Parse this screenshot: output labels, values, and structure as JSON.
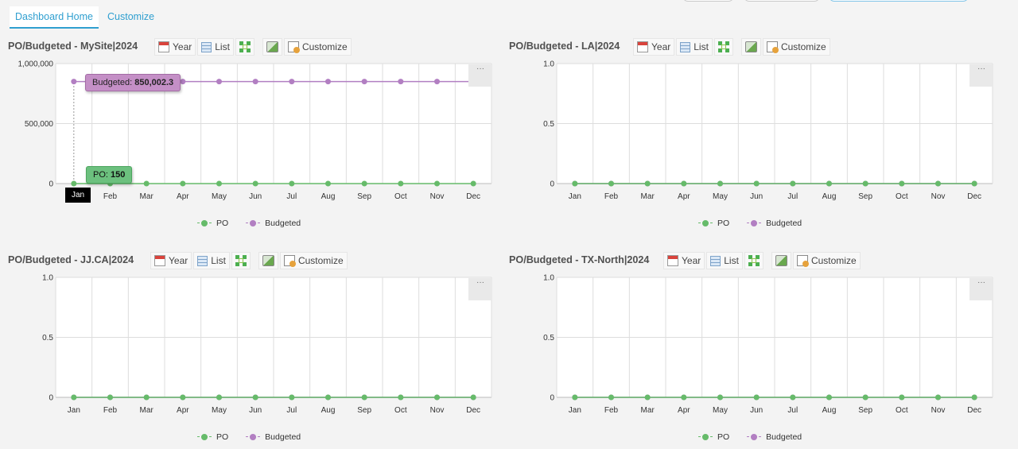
{
  "tabs": [
    {
      "label": "Dashboard Home",
      "active": true
    },
    {
      "label": "Customize",
      "active": false
    }
  ],
  "toolbar_labels": {
    "year": "Year",
    "list": "List",
    "customize": "Customize"
  },
  "legend": {
    "po": "PO",
    "budgeted": "Budgeted"
  },
  "colors": {
    "po": "#66bb6a",
    "budgeted": "#b27fc2",
    "accent": "#2f9fd0"
  },
  "menu_label": "···",
  "panels": [
    {
      "title": "PO/Budgeted - MySite|2024"
    },
    {
      "title": "PO/Budgeted - LA|2024"
    },
    {
      "title": "PO/Budgeted - JJ.CA|2024"
    },
    {
      "title": "PO/Budgeted - TX-North|2024"
    }
  ],
  "tooltip": {
    "budgeted_label": "Budgeted: ",
    "budgeted_value": "850,002.3",
    "po_label": "PO: ",
    "po_value": "150",
    "x_highlight": "Jan"
  },
  "chart_data": [
    {
      "type": "line",
      "title": "PO/Budgeted - MySite|2024",
      "categories": [
        "Jan",
        "Feb",
        "Mar",
        "Apr",
        "May",
        "Jun",
        "Jul",
        "Aug",
        "Sep",
        "Oct",
        "Nov",
        "Dec"
      ],
      "yticks": [
        "0",
        "500,000",
        "1,000,000"
      ],
      "ylim": [
        0,
        1000000
      ],
      "series": [
        {
          "name": "PO",
          "values": [
            150,
            0,
            0,
            0,
            0,
            0,
            0,
            0,
            0,
            0,
            0,
            0
          ]
        },
        {
          "name": "Budgeted",
          "values": [
            850002.3,
            850002.3,
            850002.3,
            850002.3,
            850002.3,
            850002.3,
            850002.3,
            850002.3,
            850002.3,
            850002.3,
            850002.3,
            850002.3
          ]
        }
      ]
    },
    {
      "type": "line",
      "title": "PO/Budgeted - LA|2024",
      "categories": [
        "Jan",
        "Feb",
        "Mar",
        "Apr",
        "May",
        "Jun",
        "Jul",
        "Aug",
        "Sep",
        "Oct",
        "Nov",
        "Dec"
      ],
      "yticks": [
        "0",
        "0.5",
        "1.0"
      ],
      "ylim": [
        0,
        1
      ],
      "series": [
        {
          "name": "PO",
          "values": [
            0,
            0,
            0,
            0,
            0,
            0,
            0,
            0,
            0,
            0,
            0,
            0
          ]
        },
        {
          "name": "Budgeted",
          "values": [
            0,
            0,
            0,
            0,
            0,
            0,
            0,
            0,
            0,
            0,
            0,
            0
          ]
        }
      ]
    },
    {
      "type": "line",
      "title": "PO/Budgeted - JJ.CA|2024",
      "categories": [
        "Jan",
        "Feb",
        "Mar",
        "Apr",
        "May",
        "Jun",
        "Jul",
        "Aug",
        "Sep",
        "Oct",
        "Nov",
        "Dec"
      ],
      "yticks": [
        "0",
        "0.5",
        "1.0"
      ],
      "ylim": [
        0,
        1
      ],
      "series": [
        {
          "name": "PO",
          "values": [
            0,
            0,
            0,
            0,
            0,
            0,
            0,
            0,
            0,
            0,
            0,
            0
          ]
        },
        {
          "name": "Budgeted",
          "values": [
            0,
            0,
            0,
            0,
            0,
            0,
            0,
            0,
            0,
            0,
            0,
            0
          ]
        }
      ]
    },
    {
      "type": "line",
      "title": "PO/Budgeted - TX-North|2024",
      "categories": [
        "Jan",
        "Feb",
        "Mar",
        "Apr",
        "May",
        "Jun",
        "Jul",
        "Aug",
        "Sep",
        "Oct",
        "Nov",
        "Dec"
      ],
      "yticks": [
        "0",
        "0.5",
        "1.0"
      ],
      "ylim": [
        0,
        1
      ],
      "series": [
        {
          "name": "PO",
          "values": [
            0,
            0,
            0,
            0,
            0,
            0,
            0,
            0,
            0,
            0,
            0,
            0
          ]
        },
        {
          "name": "Budgeted",
          "values": [
            0,
            0,
            0,
            0,
            0,
            0,
            0,
            0,
            0,
            0,
            0,
            0
          ]
        }
      ]
    }
  ]
}
